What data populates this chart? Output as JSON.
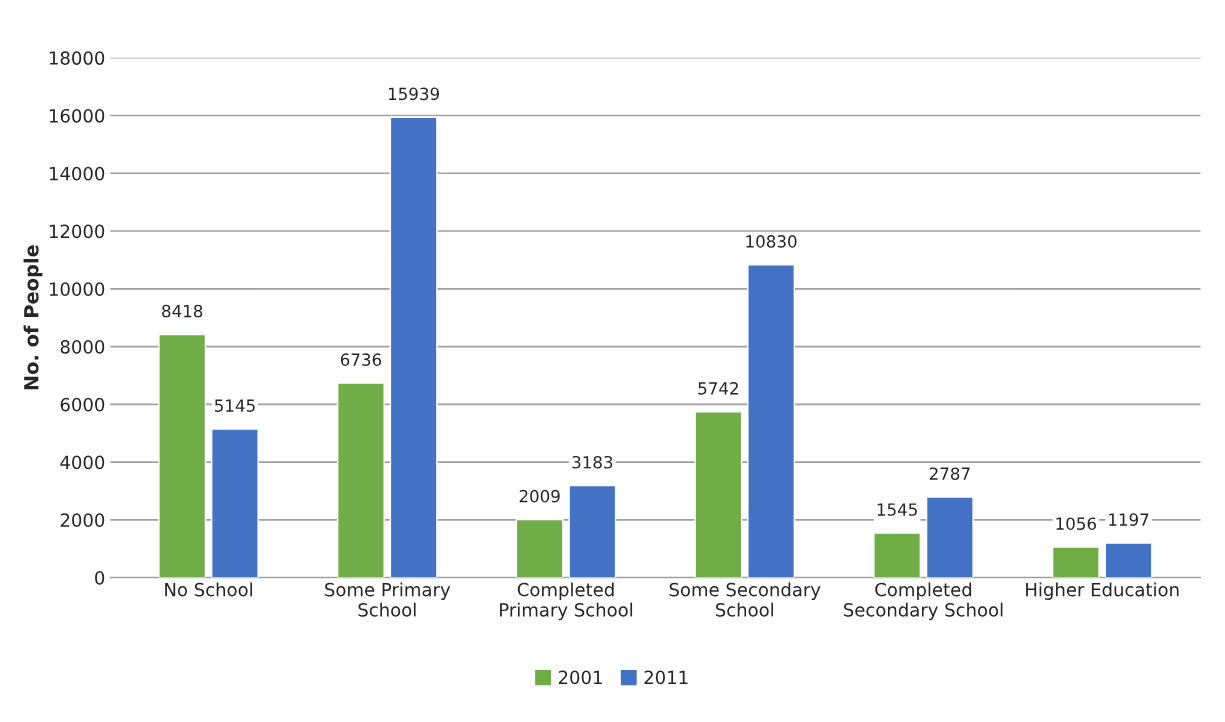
{
  "chart_data": {
    "type": "bar",
    "ylabel": "No. of People",
    "categories": [
      "No School",
      "Some Primary\nSchool",
      "Completed\nPrimary School",
      "Some Secondary\nSchool",
      "Completed\nSecondary School",
      "Higher Education"
    ],
    "series": [
      {
        "name": "2001",
        "color": "#70ad47",
        "values": [
          8418,
          6736,
          2009,
          5742,
          1545,
          1056
        ]
      },
      {
        "name": "2011",
        "color": "#4472c4",
        "values": [
          5145,
          15939,
          3183,
          10830,
          2787,
          1197
        ]
      }
    ],
    "ylim": [
      0,
      18000
    ],
    "yticks": [
      0,
      2000,
      4000,
      6000,
      8000,
      10000,
      12000,
      14000,
      16000,
      18000
    ],
    "grid": "y",
    "legend": "bottom",
    "data_labels": true
  }
}
